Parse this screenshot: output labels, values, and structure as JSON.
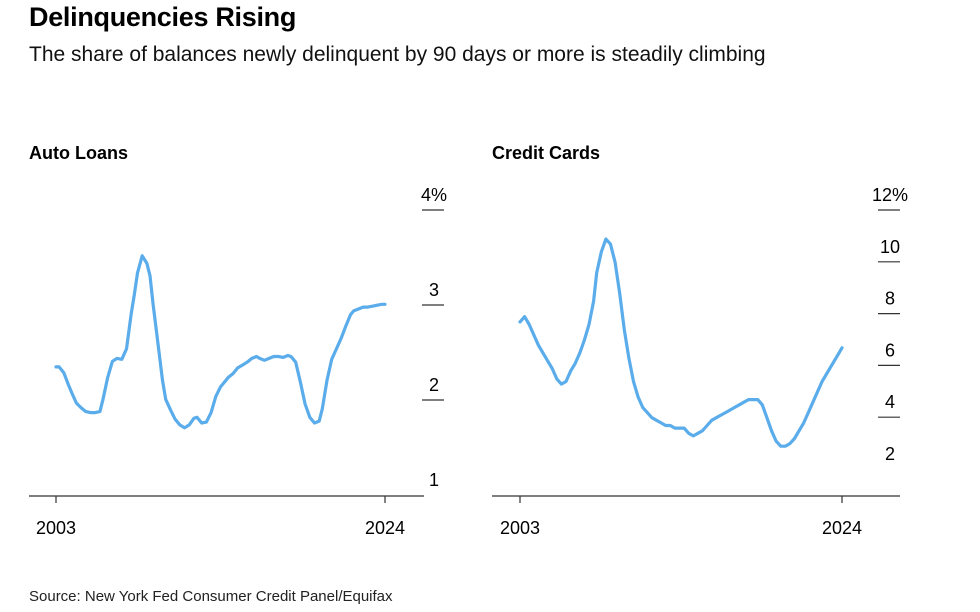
{
  "headline": "Delinquencies Rising",
  "subhead": "The share of balances newly delinquent by 90 days or more is steadily climbing",
  "source": "Source: New York Fed Consumer Credit Panel/Equifax",
  "colors": {
    "line": "#5aacea",
    "axis": "#333333",
    "text": "#000000"
  },
  "chart_data": [
    {
      "type": "line",
      "title": "Auto Loans",
      "xlabel": "",
      "ylabel": "",
      "x_tick_labels": [
        "2003",
        "2024"
      ],
      "xlim": [
        2003,
        2024
      ],
      "y_tick_labels": [
        "4%",
        "3",
        "2",
        "1"
      ],
      "y_ticks": [
        4,
        3,
        2,
        1
      ],
      "ylim": [
        1,
        4
      ],
      "grid": false,
      "y_axis_side": "right",
      "series": [
        {
          "x": [
            2003.0,
            2003.2,
            2003.5,
            2003.8,
            2004.0,
            2004.3,
            2004.6,
            2004.9,
            2005.2,
            2005.5,
            2005.8,
            2006.0,
            2006.3,
            2006.6,
            2006.9,
            2007.2,
            2007.5,
            2007.8,
            2008.0,
            2008.2,
            2008.5,
            2008.8,
            2009.0,
            2009.2,
            2009.5,
            2009.8,
            2010.0,
            2010.3,
            2010.6,
            2010.9,
            2011.2,
            2011.5,
            2011.8,
            2012.0,
            2012.3,
            2012.6,
            2012.9,
            2013.2,
            2013.5,
            2013.8,
            2014.0,
            2014.3,
            2014.6,
            2014.9,
            2015.2,
            2015.5,
            2015.8,
            2016.0,
            2016.3,
            2016.6,
            2016.9,
            2017.2,
            2017.5,
            2017.8,
            2018.0,
            2018.3,
            2018.6,
            2018.9,
            2019.2,
            2019.5,
            2019.8,
            2020.0,
            2020.3,
            2020.6,
            2020.9,
            2021.2,
            2021.5,
            2021.8,
            2022.0,
            2022.3,
            2022.6,
            2022.9,
            2023.2,
            2023.5,
            2023.8,
            2024.0
          ],
          "values": [
            2.19,
            2.19,
            2.13,
            2.0,
            1.92,
            1.81,
            1.76,
            1.72,
            1.71,
            1.71,
            1.72,
            1.85,
            2.08,
            2.25,
            2.28,
            2.27,
            2.38,
            2.75,
            2.95,
            3.18,
            3.36,
            3.28,
            3.15,
            2.85,
            2.45,
            2.05,
            1.85,
            1.74,
            1.64,
            1.58,
            1.55,
            1.58,
            1.65,
            1.66,
            1.6,
            1.61,
            1.71,
            1.88,
            1.98,
            2.04,
            2.08,
            2.12,
            2.18,
            2.21,
            2.24,
            2.28,
            2.3,
            2.28,
            2.26,
            2.28,
            2.3,
            2.3,
            2.29,
            2.31,
            2.3,
            2.24,
            2.03,
            1.8,
            1.66,
            1.6,
            1.62,
            1.75,
            2.05,
            2.27,
            2.38,
            2.49,
            2.62,
            2.74,
            2.78,
            2.8,
            2.82,
            2.82,
            2.83,
            2.84,
            2.85,
            2.85
          ]
        }
      ]
    },
    {
      "type": "line",
      "title": "Credit Cards",
      "xlabel": "",
      "ylabel": "",
      "x_tick_labels": [
        "2003",
        "2024"
      ],
      "xlim": [
        2003,
        2024
      ],
      "y_tick_labels": [
        "12%",
        "10",
        "8",
        "6",
        "4",
        "2"
      ],
      "y_ticks": [
        12,
        10,
        8,
        6,
        4,
        2
      ],
      "ylim": [
        0,
        12
      ],
      "grid": false,
      "y_axis_side": "right",
      "series": [
        {
          "x": [
            2003.0,
            2003.3,
            2003.6,
            2003.9,
            2004.2,
            2004.5,
            2004.8,
            2005.1,
            2005.4,
            2005.7,
            2006.0,
            2006.3,
            2006.6,
            2006.9,
            2007.2,
            2007.5,
            2007.8,
            2008.0,
            2008.3,
            2008.6,
            2008.9,
            2009.2,
            2009.5,
            2009.8,
            2010.1,
            2010.4,
            2010.7,
            2011.0,
            2011.3,
            2011.6,
            2011.9,
            2012.2,
            2012.5,
            2012.8,
            2013.1,
            2013.4,
            2013.7,
            2014.0,
            2014.3,
            2014.6,
            2014.9,
            2015.2,
            2015.5,
            2015.8,
            2016.1,
            2016.4,
            2016.7,
            2017.0,
            2017.3,
            2017.6,
            2017.9,
            2018.2,
            2018.5,
            2018.8,
            2019.1,
            2019.4,
            2019.7,
            2020.0,
            2020.3,
            2020.6,
            2020.9,
            2021.2,
            2021.5,
            2021.8,
            2022.1,
            2022.4,
            2022.7,
            2023.0,
            2023.3,
            2023.6,
            2023.9,
            2024.0
          ],
          "values": [
            7.1,
            7.3,
            7.0,
            6.6,
            6.2,
            5.9,
            5.6,
            5.3,
            4.9,
            4.7,
            4.8,
            5.2,
            5.5,
            5.9,
            6.4,
            7.0,
            7.9,
            9.0,
            9.8,
            10.3,
            10.1,
            9.4,
            8.2,
            6.8,
            5.7,
            4.8,
            4.2,
            3.8,
            3.6,
            3.4,
            3.3,
            3.2,
            3.1,
            3.1,
            3.0,
            3.0,
            3.0,
            2.8,
            2.7,
            2.8,
            2.9,
            3.1,
            3.3,
            3.4,
            3.5,
            3.6,
            3.7,
            3.8,
            3.9,
            4.0,
            4.1,
            4.1,
            4.1,
            3.9,
            3.4,
            2.9,
            2.5,
            2.3,
            2.3,
            2.4,
            2.6,
            2.9,
            3.2,
            3.6,
            4.0,
            4.4,
            4.8,
            5.1,
            5.4,
            5.7,
            6.0,
            6.1
          ]
        }
      ]
    }
  ]
}
